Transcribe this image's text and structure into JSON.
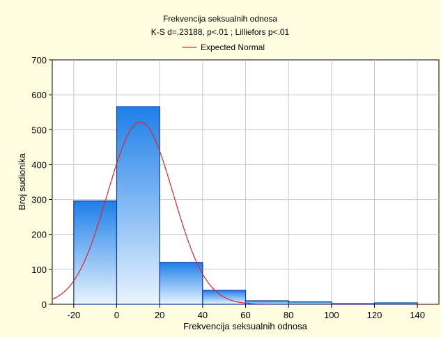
{
  "chart_data": {
    "type": "bar",
    "title": "Frekvencija seksualnih odnosa",
    "subtitle": "K-S d=.23188, p<.01 ; Lilliefors p<.01",
    "xlabel": "Frekvencija seksualnih odnosa",
    "ylabel": "Broj sudionika",
    "xlim": [
      -30,
      150
    ],
    "ylim": [
      0,
      700
    ],
    "x_ticks": [
      "-20",
      "0",
      "20",
      "40",
      "60",
      "80",
      "100",
      "120",
      "140"
    ],
    "y_ticks": [
      "0",
      "100",
      "200",
      "300",
      "400",
      "500",
      "600",
      "700"
    ],
    "bins": [
      {
        "from": -20,
        "to": 0,
        "value": 296
      },
      {
        "from": 0,
        "to": 20,
        "value": 566
      },
      {
        "from": 20,
        "to": 40,
        "value": 120
      },
      {
        "from": 40,
        "to": 60,
        "value": 40
      },
      {
        "from": 60,
        "to": 80,
        "value": 10
      },
      {
        "from": 80,
        "to": 100,
        "value": 7
      },
      {
        "from": 100,
        "to": 120,
        "value": 2
      },
      {
        "from": 120,
        "to": 140,
        "value": 4
      }
    ],
    "normal_curve": {
      "name": "Expected Normal",
      "mean": 11,
      "sd": 15.3,
      "peak": 522,
      "color": "#E0222A"
    },
    "grid": true,
    "legend_position": "top-center",
    "colors": {
      "bar_top": "#1E7FE8",
      "bar_bottom": "#E8F4FF",
      "bar_stroke": "#1038A8",
      "background": "#FFFDE0",
      "plot_background": "#FFFFFF",
      "grid": "#C8C8C8"
    }
  }
}
